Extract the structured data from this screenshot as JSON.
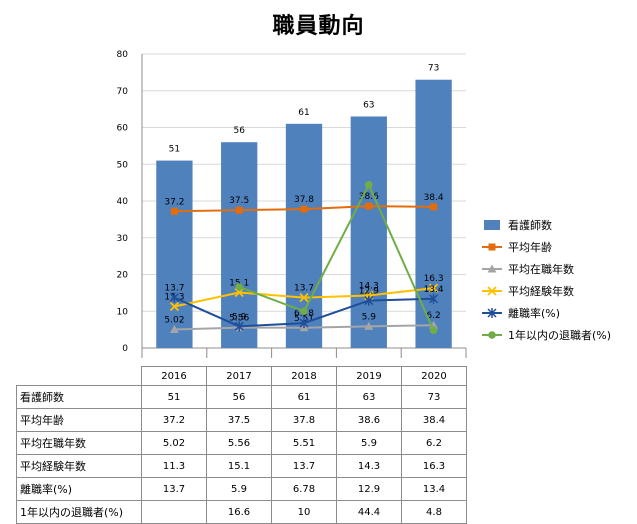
{
  "chart_data": {
    "type": "bar+line",
    "title": "職員動向",
    "categories": [
      "2016",
      "2017",
      "2018",
      "2019",
      "2020"
    ],
    "ylim": [
      0,
      80
    ],
    "yticks": [
      0,
      10,
      20,
      30,
      40,
      50,
      60,
      70,
      80
    ],
    "grid": true,
    "legend_position": "right",
    "series": [
      {
        "name": "看護師数",
        "type": "bar",
        "color": "#4f81bd",
        "values": [
          51,
          56,
          61,
          63,
          73
        ],
        "labels": [
          "51",
          "56",
          "61",
          "63",
          "73"
        ]
      },
      {
        "name": "平均年齢",
        "type": "line",
        "color": "#e46c0a",
        "marker": "square",
        "values": [
          37.2,
          37.5,
          37.8,
          38.6,
          38.4
        ],
        "labels": [
          "37.2",
          "37.5",
          "37.8",
          "38.6",
          "38.4"
        ]
      },
      {
        "name": "平均在職年数",
        "type": "line",
        "color": "#a5a5a5",
        "marker": "triangle",
        "values": [
          5.02,
          5.56,
          5.51,
          5.9,
          6.2
        ],
        "labels": [
          "5.02",
          "5.56",
          "5.51",
          "5.9",
          "6.2"
        ]
      },
      {
        "name": "平均経験年数",
        "type": "line",
        "color": "#ffc000",
        "marker": "x",
        "values": [
          11.3,
          15.1,
          13.7,
          14.3,
          16.3
        ],
        "labels": [
          "11.3",
          "15.1",
          "13.7",
          "14.3",
          "16.3"
        ]
      },
      {
        "name": "離職率(%)",
        "type": "line",
        "color": "#1f4e9b",
        "marker": "star",
        "values": [
          13.7,
          5.9,
          6.78,
          12.9,
          13.4
        ],
        "labels": [
          "13.7",
          "5.9",
          "6.78",
          "12.9",
          "13.4"
        ]
      },
      {
        "name": "1年以内の退職者(%)",
        "type": "line",
        "color": "#70ad47",
        "marker": "circle",
        "values": [
          null,
          16.6,
          10,
          44.4,
          4.8
        ],
        "labels": [
          "",
          "",
          "",
          "",
          ""
        ]
      }
    ]
  },
  "table": {
    "columns": [
      "2016",
      "2017",
      "2018",
      "2019",
      "2020"
    ],
    "rows": [
      {
        "label": "看護師数",
        "values": [
          "51",
          "56",
          "61",
          "63",
          "73"
        ]
      },
      {
        "label": "平均年齢",
        "values": [
          "37.2",
          "37.5",
          "37.8",
          "38.6",
          "38.4"
        ]
      },
      {
        "label": "平均在職年数",
        "values": [
          "5.02",
          "5.56",
          "5.51",
          "5.9",
          "6.2"
        ]
      },
      {
        "label": "平均経験年数",
        "values": [
          "11.3",
          "15.1",
          "13.7",
          "14.3",
          "16.3"
        ]
      },
      {
        "label": "離職率(%)",
        "values": [
          "13.7",
          "5.9",
          "6.78",
          "12.9",
          "13.4"
        ]
      },
      {
        "label": "1年以内の退職者(%)",
        "values": [
          "",
          "16.6",
          "10",
          "44.4",
          "4.8"
        ]
      }
    ]
  }
}
